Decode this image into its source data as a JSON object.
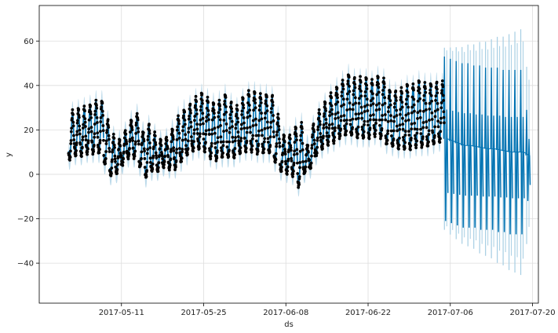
{
  "chart_data": {
    "type": "line",
    "title": "",
    "xlabel": "ds",
    "ylabel": "y",
    "x_type": "date",
    "xlim": [
      "2017-04-27",
      "2017-07-21"
    ],
    "ylim": [
      -58,
      76
    ],
    "x_ticks": [
      "2017-05-11",
      "2017-05-25",
      "2017-06-08",
      "2017-06-22",
      "2017-07-06",
      "2017-07-20"
    ],
    "y_ticks": [
      -40,
      -20,
      0,
      20,
      40,
      60
    ],
    "y_tick_labels": [
      "−40",
      "−20",
      "0",
      "20",
      "40",
      "60"
    ],
    "grid": true,
    "history_end": "2017-07-04",
    "forecast_end": "2017-07-19",
    "colors": {
      "observed": "#000000",
      "forecast": "#0072b2",
      "interval": "#a6cee3",
      "grid": "#dddddd",
      "axis": "#000000"
    },
    "daily_series": [
      {
        "date": "2017-05-02",
        "low": 7,
        "high": 28
      },
      {
        "date": "2017-05-03",
        "low": 9,
        "high": 29
      },
      {
        "date": "2017-05-04",
        "low": 9,
        "high": 30
      },
      {
        "date": "2017-05-05",
        "low": 10,
        "high": 31
      },
      {
        "date": "2017-05-06",
        "low": 10,
        "high": 33
      },
      {
        "date": "2017-05-07",
        "low": 10,
        "high": 33
      },
      {
        "date": "2017-05-08",
        "low": 5,
        "high": 24
      },
      {
        "date": "2017-05-09",
        "low": 0,
        "high": 17
      },
      {
        "date": "2017-05-10",
        "low": 1,
        "high": 15
      },
      {
        "date": "2017-05-11",
        "low": 5,
        "high": 19
      },
      {
        "date": "2017-05-12",
        "low": 8,
        "high": 24
      },
      {
        "date": "2017-05-13",
        "low": 8,
        "high": 27
      },
      {
        "date": "2017-05-14",
        "low": 4,
        "high": 19
      },
      {
        "date": "2017-05-15",
        "low": -1,
        "high": 22
      },
      {
        "date": "2017-05-16",
        "low": 2,
        "high": 18
      },
      {
        "date": "2017-05-17",
        "low": 2,
        "high": 15
      },
      {
        "date": "2017-05-18",
        "low": 4,
        "high": 16
      },
      {
        "date": "2017-05-19",
        "low": 3,
        "high": 20
      },
      {
        "date": "2017-05-20",
        "low": 3,
        "high": 26
      },
      {
        "date": "2017-05-21",
        "low": 6,
        "high": 29
      },
      {
        "date": "2017-05-22",
        "low": 9,
        "high": 31
      },
      {
        "date": "2017-05-23",
        "low": 11,
        "high": 34
      },
      {
        "date": "2017-05-24",
        "low": 12,
        "high": 36
      },
      {
        "date": "2017-05-25",
        "low": 11,
        "high": 34
      },
      {
        "date": "2017-05-26",
        "low": 8,
        "high": 32
      },
      {
        "date": "2017-05-27",
        "low": 7,
        "high": 33
      },
      {
        "date": "2017-05-28",
        "low": 8,
        "high": 36
      },
      {
        "date": "2017-05-29",
        "low": 8,
        "high": 32
      },
      {
        "date": "2017-05-30",
        "low": 8,
        "high": 30
      },
      {
        "date": "2017-05-31",
        "low": 10,
        "high": 34
      },
      {
        "date": "2017-06-01",
        "low": 11,
        "high": 37
      },
      {
        "date": "2017-06-02",
        "low": 11,
        "high": 37
      },
      {
        "date": "2017-06-03",
        "low": 10,
        "high": 36
      },
      {
        "date": "2017-06-04",
        "low": 10,
        "high": 36
      },
      {
        "date": "2017-06-05",
        "low": 10,
        "high": 35
      },
      {
        "date": "2017-06-06",
        "low": 6,
        "high": 26
      },
      {
        "date": "2017-06-07",
        "low": 2,
        "high": 17
      },
      {
        "date": "2017-06-08",
        "low": 1,
        "high": 17
      },
      {
        "date": "2017-06-09",
        "low": 0,
        "high": 21
      },
      {
        "date": "2017-06-10",
        "low": -5,
        "high": 23
      },
      {
        "date": "2017-06-11",
        "low": 1,
        "high": 13
      },
      {
        "date": "2017-06-12",
        "low": 3,
        "high": 22
      },
      {
        "date": "2017-06-13",
        "low": 9,
        "high": 28
      },
      {
        "date": "2017-06-14",
        "low": 12,
        "high": 32
      },
      {
        "date": "2017-06-15",
        "low": 14,
        "high": 36
      },
      {
        "date": "2017-06-16",
        "low": 15,
        "high": 39
      },
      {
        "date": "2017-06-17",
        "low": 17,
        "high": 42
      },
      {
        "date": "2017-06-18",
        "low": 18,
        "high": 45
      },
      {
        "date": "2017-06-19",
        "low": 18,
        "high": 43
      },
      {
        "date": "2017-06-20",
        "low": 17,
        "high": 43
      },
      {
        "date": "2017-06-21",
        "low": 17,
        "high": 43
      },
      {
        "date": "2017-06-22",
        "low": 17,
        "high": 42
      },
      {
        "date": "2017-06-23",
        "low": 18,
        "high": 44
      },
      {
        "date": "2017-06-24",
        "low": 17,
        "high": 43
      },
      {
        "date": "2017-06-25",
        "low": 14,
        "high": 38
      },
      {
        "date": "2017-06-26",
        "low": 13,
        "high": 37
      },
      {
        "date": "2017-06-27",
        "low": 12,
        "high": 38
      },
      {
        "date": "2017-06-28",
        "low": 12,
        "high": 40
      },
      {
        "date": "2017-06-29",
        "low": 12,
        "high": 40
      },
      {
        "date": "2017-06-30",
        "low": 13,
        "high": 42
      },
      {
        "date": "2017-07-01",
        "low": 13,
        "high": 41
      },
      {
        "date": "2017-07-02",
        "low": 13,
        "high": 41
      },
      {
        "date": "2017-07-03",
        "low": 14,
        "high": 41
      },
      {
        "date": "2017-07-04",
        "low": 15,
        "high": 41
      }
    ],
    "forecast_series": [
      {
        "date": "2017-07-05",
        "low": -21,
        "high": 53
      },
      {
        "date": "2017-07-06",
        "low": -22,
        "high": 52
      },
      {
        "date": "2017-07-07",
        "low": -23,
        "high": 51
      },
      {
        "date": "2017-07-08",
        "low": -24,
        "high": 50
      },
      {
        "date": "2017-07-09",
        "low": -24,
        "high": 50
      },
      {
        "date": "2017-07-10",
        "low": -24,
        "high": 49
      },
      {
        "date": "2017-07-11",
        "low": -25,
        "high": 49
      },
      {
        "date": "2017-07-12",
        "low": -25,
        "high": 48
      },
      {
        "date": "2017-07-13",
        "low": -25,
        "high": 48
      },
      {
        "date": "2017-07-14",
        "low": -26,
        "high": 48
      },
      {
        "date": "2017-07-15",
        "low": -26,
        "high": 47
      },
      {
        "date": "2017-07-16",
        "low": -27,
        "high": 47
      },
      {
        "date": "2017-07-17",
        "low": -27,
        "high": 47
      },
      {
        "date": "2017-07-18",
        "low": -27,
        "high": 47
      },
      {
        "date": "2017-07-19",
        "low": -12,
        "high": 29
      }
    ]
  }
}
